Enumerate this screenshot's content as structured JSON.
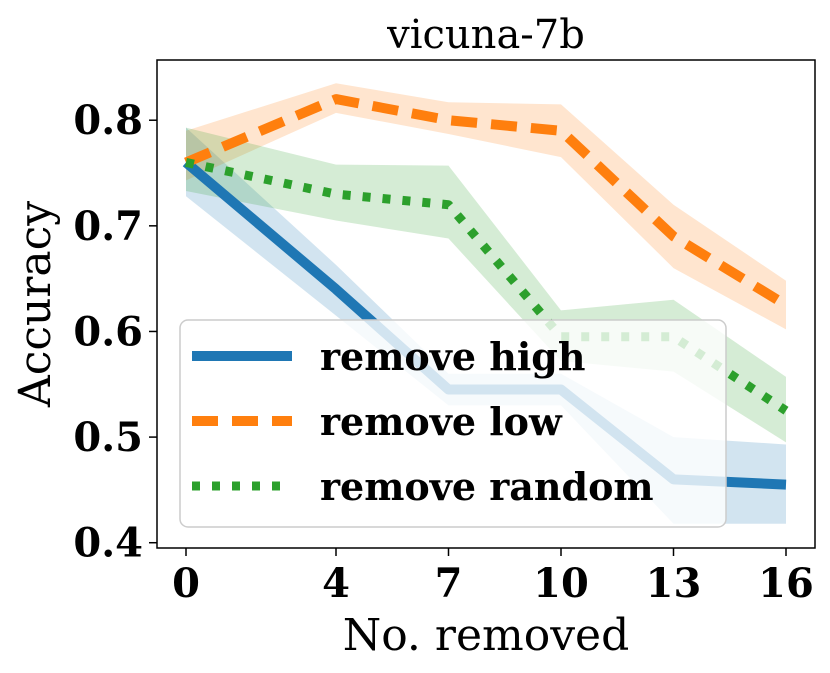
{
  "chart_data": {
    "type": "line",
    "title": "vicuna-7b",
    "xlabel": "No. removed",
    "ylabel": "Accuracy",
    "x": [
      0,
      4,
      7,
      10,
      13,
      16
    ],
    "xticks": [
      "0",
      "4",
      "7",
      "10",
      "13",
      "16"
    ],
    "yticks": [
      "0.4",
      "0.5",
      "0.6",
      "0.7",
      "0.8"
    ],
    "ylim": [
      0.395,
      0.857
    ],
    "legend_position": "lower-left",
    "series": [
      {
        "name": "remove high",
        "color": "#1f77b4",
        "style": "solid",
        "values": [
          0.76,
          0.64,
          0.545,
          0.545,
          0.46,
          0.455
        ],
        "lower": [
          0.728,
          0.615,
          0.53,
          0.53,
          0.418,
          0.418
        ],
        "upper": [
          0.793,
          0.663,
          0.56,
          0.56,
          0.5,
          0.493
        ]
      },
      {
        "name": "remove low",
        "color": "#ff7f0e",
        "style": "dashed",
        "values": [
          0.76,
          0.82,
          0.8,
          0.79,
          0.69,
          0.625
        ],
        "lower": [
          0.743,
          0.807,
          0.787,
          0.765,
          0.66,
          0.602
        ],
        "upper": [
          0.79,
          0.835,
          0.817,
          0.815,
          0.72,
          0.648
        ]
      },
      {
        "name": "remove random",
        "color": "#2ca02c",
        "style": "dotted",
        "values": [
          0.76,
          0.73,
          0.72,
          0.595,
          0.595,
          0.525
        ],
        "lower": [
          0.733,
          0.705,
          0.688,
          0.572,
          0.562,
          0.495
        ],
        "upper": [
          0.793,
          0.758,
          0.757,
          0.62,
          0.63,
          0.557
        ]
      }
    ]
  }
}
